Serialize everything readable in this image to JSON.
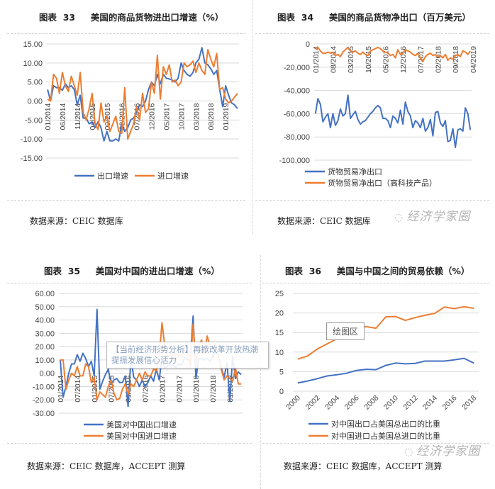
{
  "chart_data": [
    {
      "id": "c33",
      "type": "line",
      "title": "图表  33     美国的商品货物进出口增速（%）",
      "source": "数据来源：CEIC 数据库",
      "ylim": [
        -15,
        15
      ],
      "yticks": [
        15,
        10,
        5,
        0,
        -5,
        -10,
        -15
      ],
      "ytick_labels": [
        "15.00",
        "10.00",
        "5.00",
        "0.00",
        "-5.00",
        "-10.00",
        "-15.00"
      ],
      "xtick_labels": [
        "01/2014",
        "06/2014",
        "11/2014",
        "04/2015",
        "09/2015",
        "02/2016",
        "07/2016",
        "12/2016",
        "05/2017",
        "10/2017",
        "03/2018",
        "08/2018",
        "01/2019"
      ],
      "xtick_step": 5,
      "legend": "bottom",
      "series": [
        {
          "name": "出口增速",
          "color": "#4472c4",
          "values": [
            3,
            0,
            4,
            3.5,
            3.5,
            2.8,
            4.5,
            3.5,
            4,
            3,
            -1,
            1.5,
            -4.5,
            -4.5,
            -6,
            -5.5,
            -7,
            -5.5,
            -7,
            -10.5,
            -8,
            -10.5,
            -10.5,
            -10,
            -10.5,
            -6,
            -8,
            -7,
            -5,
            -4.5,
            -3,
            -1,
            -1.5,
            0,
            3,
            5,
            4,
            7,
            4.5,
            7,
            6,
            5.8,
            5.5,
            5,
            6,
            10,
            8,
            7,
            6.5,
            7.5,
            10,
            11,
            14,
            10,
            9.5,
            8.5,
            7,
            8,
            3,
            -1.5,
            4,
            1.5,
            -0.5,
            -1,
            -2
          ]
        },
        {
          "name": "进口增速",
          "color": "#ed7d31",
          "values": [
            0.5,
            0,
            7,
            6,
            2,
            7.5,
            4,
            2.5,
            6.5,
            4,
            1.5,
            7.5,
            -3,
            -5,
            -2,
            2,
            -6,
            -7.5,
            -0.5,
            -5.5,
            -4,
            -8,
            -6,
            -4,
            -8,
            -8.5,
            3.5,
            -10,
            -8,
            -6,
            -1.5,
            -5,
            2,
            -3,
            -2,
            5,
            2,
            12,
            0.5,
            9,
            7,
            9.5,
            5,
            5.5,
            4,
            5,
            10,
            9,
            9.5,
            10.5,
            7.5,
            10,
            8,
            7,
            13.5,
            11,
            9,
            12.5,
            3,
            3.5,
            0.5,
            -0.5,
            0,
            1,
            2
          ]
        }
      ]
    },
    {
      "id": "c34",
      "type": "line",
      "title": "图表  34     美国的商品货物净出口（百万美元）",
      "source": "数据来源：CEIC 数据库",
      "ylim": [
        -100000,
        0
      ],
      "yticks": [
        0,
        -20000,
        -40000,
        -60000,
        -80000,
        -100000
      ],
      "ytick_labels": [
        "0",
        "-20,000",
        "-40,000",
        "-60,000",
        "-80,000",
        "-100,000"
      ],
      "xtick_labels": [
        "01/2014",
        "08/2014",
        "03/2015",
        "10/2015",
        "05/2016",
        "12/2016",
        "07/2017",
        "02/2018",
        "09/2018",
        "04/2019"
      ],
      "xtick_step": 7,
      "legend": "bottom",
      "series": [
        {
          "name": "货物贸易净出口",
          "color": "#4472c4",
          "values": [
            -60000,
            -47000,
            -52000,
            -67000,
            -63000,
            -60000,
            -72000,
            -60000,
            -70000,
            -66000,
            -56000,
            -62000,
            -60000,
            -44000,
            -64000,
            -61000,
            -58000,
            -65000,
            -69000,
            -67000,
            -66000,
            -63000,
            -60000,
            -58000,
            -55000,
            -53000,
            -55000,
            -64000,
            -64000,
            -66000,
            -72000,
            -62000,
            -64000,
            -68000,
            -57000,
            -69000,
            -50000,
            -58000,
            -62000,
            -72000,
            -66000,
            -68000,
            -72000,
            -64000,
            -75000,
            -72000,
            -65000,
            -79000,
            -59000,
            -58000,
            -68000,
            -71000,
            -66000,
            -84000,
            -83000,
            -73000,
            -89000,
            -74000,
            -73000,
            -75000,
            -55000,
            -60000,
            -74000
          ]
        },
        {
          "name": "货物贸易净出口（高科技产品）",
          "color": "#ed7d31",
          "values": [
            -4000,
            -3000,
            -6000,
            -8000,
            -8000,
            -7000,
            -8000,
            -7000,
            -10000,
            -9000,
            -11000,
            -7000,
            -5000,
            -3000,
            -6000,
            -7000,
            -6000,
            -8000,
            -9000,
            -7000,
            -9000,
            -10000,
            -6000,
            -5000,
            -4000,
            -3000,
            -4000,
            -6000,
            -7000,
            -8000,
            -10000,
            -9000,
            -12000,
            -5000,
            -9000,
            -8000,
            -5000,
            -6000,
            -7000,
            -9000,
            -10000,
            -8000,
            -12000,
            -15000,
            -11000,
            -9000,
            -8000,
            -10000,
            -9000,
            -11000,
            -10000,
            -12000,
            -9000,
            -14000,
            -12000,
            -13000,
            -10000,
            -9000,
            -11000,
            -6000,
            -7000,
            -9000,
            -6000
          ]
        }
      ]
    },
    {
      "id": "c35",
      "type": "line",
      "title": "图表  35     美国对中国的进出口增速（%）",
      "source": "数据来源：CEIC 数据库，ACCEPT 测算",
      "ylim": [
        -30,
        60
      ],
      "yticks": [
        60,
        50,
        40,
        30,
        20,
        10,
        0,
        -10,
        -20,
        -30
      ],
      "ytick_labels": [
        "60.00",
        "50.00",
        "40.00",
        "30.00",
        "20.00",
        "10.00",
        "0.00",
        "-10.00",
        "-20.00",
        "-30.00"
      ],
      "xtick_labels": [
        "01/2014",
        "07/2014",
        "01/2015",
        "07/2015",
        "01/2016",
        "07/2016",
        "01/2017",
        "07/2017",
        "01/2018",
        "07/2018",
        "01/2019"
      ],
      "xtick_step": 6,
      "legend": "bottom",
      "series": [
        {
          "name": "美国对中国出口增速",
          "color": "#4472c4",
          "values": [
            10,
            -18,
            -10,
            0,
            7,
            7,
            14,
            9,
            15,
            11,
            5,
            9,
            -2,
            48,
            -12,
            -6,
            -1,
            3,
            -8,
            -5,
            -4,
            -7,
            -7,
            -2,
            -25,
            11,
            -3,
            -5,
            -10,
            -5,
            -10,
            -7,
            -2,
            -6,
            3,
            -5,
            12,
            4,
            5,
            9,
            6,
            4,
            7,
            6,
            12,
            10,
            10,
            43,
            -4,
            11,
            11,
            10,
            11,
            9,
            13,
            16,
            13,
            4,
            -3,
            8,
            -21,
            13,
            -4,
            1,
            -1
          ]
        },
        {
          "name": "美国对中国进口增速",
          "color": "#ed7d31",
          "values": [
            10,
            10,
            -12,
            -5,
            0,
            -2,
            5,
            -2,
            -2,
            7,
            5,
            -7,
            -3,
            -20,
            -14,
            -16,
            -18,
            -10,
            -5,
            -15,
            -20,
            -19,
            -12,
            -8,
            -16,
            -8,
            -10,
            -5,
            0,
            -5,
            1,
            -2,
            -2,
            3,
            2,
            12,
            38,
            20,
            12,
            14,
            16,
            10,
            14,
            12,
            18,
            15,
            5,
            37,
            6,
            20,
            25,
            15,
            28,
            20,
            18,
            22,
            12,
            3,
            -5,
            -2,
            -4,
            -6,
            4,
            -8,
            -8
          ]
        }
      ]
    },
    {
      "id": "c36",
      "type": "line",
      "title": "图表  36     美国与中国之间的贸易依赖（%）",
      "source": "数据来源：CEIC 数据库，ACCEPT 测算",
      "ylim": [
        0,
        25
      ],
      "yticks": [
        25,
        20,
        15,
        10,
        5,
        0
      ],
      "ytick_labels": [
        "25",
        "20",
        "15",
        "10",
        "5",
        "0"
      ],
      "xtick_labels": [
        "2000",
        "2002",
        "2004",
        "2006",
        "2008",
        "2010",
        "2012",
        "2014",
        "2016",
        "2018"
      ],
      "xtick_step": 2,
      "legend": "bottom",
      "series": [
        {
          "name": "对中国出口占美国总出口的比重",
          "color": "#4472c4",
          "values": [
            2.1,
            2.6,
            3.2,
            3.9,
            4.2,
            4.6,
            5.3,
            5.6,
            5.5,
            6.6,
            7.2,
            7.0,
            7.1,
            7.7,
            7.7,
            7.7,
            8.0,
            8.4,
            7.2
          ]
        },
        {
          "name": "对中国进口占美国总进口的比重",
          "color": "#ed7d31",
          "values": [
            8.2,
            9.0,
            10.8,
            12.1,
            13.4,
            15.0,
            15.9,
            16.5,
            16.1,
            19.0,
            19.1,
            18.1,
            18.8,
            19.4,
            19.9,
            21.5,
            21.1,
            21.6,
            21.2
          ]
        }
      ]
    }
  ],
  "overlays": {
    "plot_area_label": "绘图区",
    "tooltip": "【当前经济形势分析】再掀改革开放热潮 提振发展信心活力",
    "watermark": "经济学家圈"
  }
}
